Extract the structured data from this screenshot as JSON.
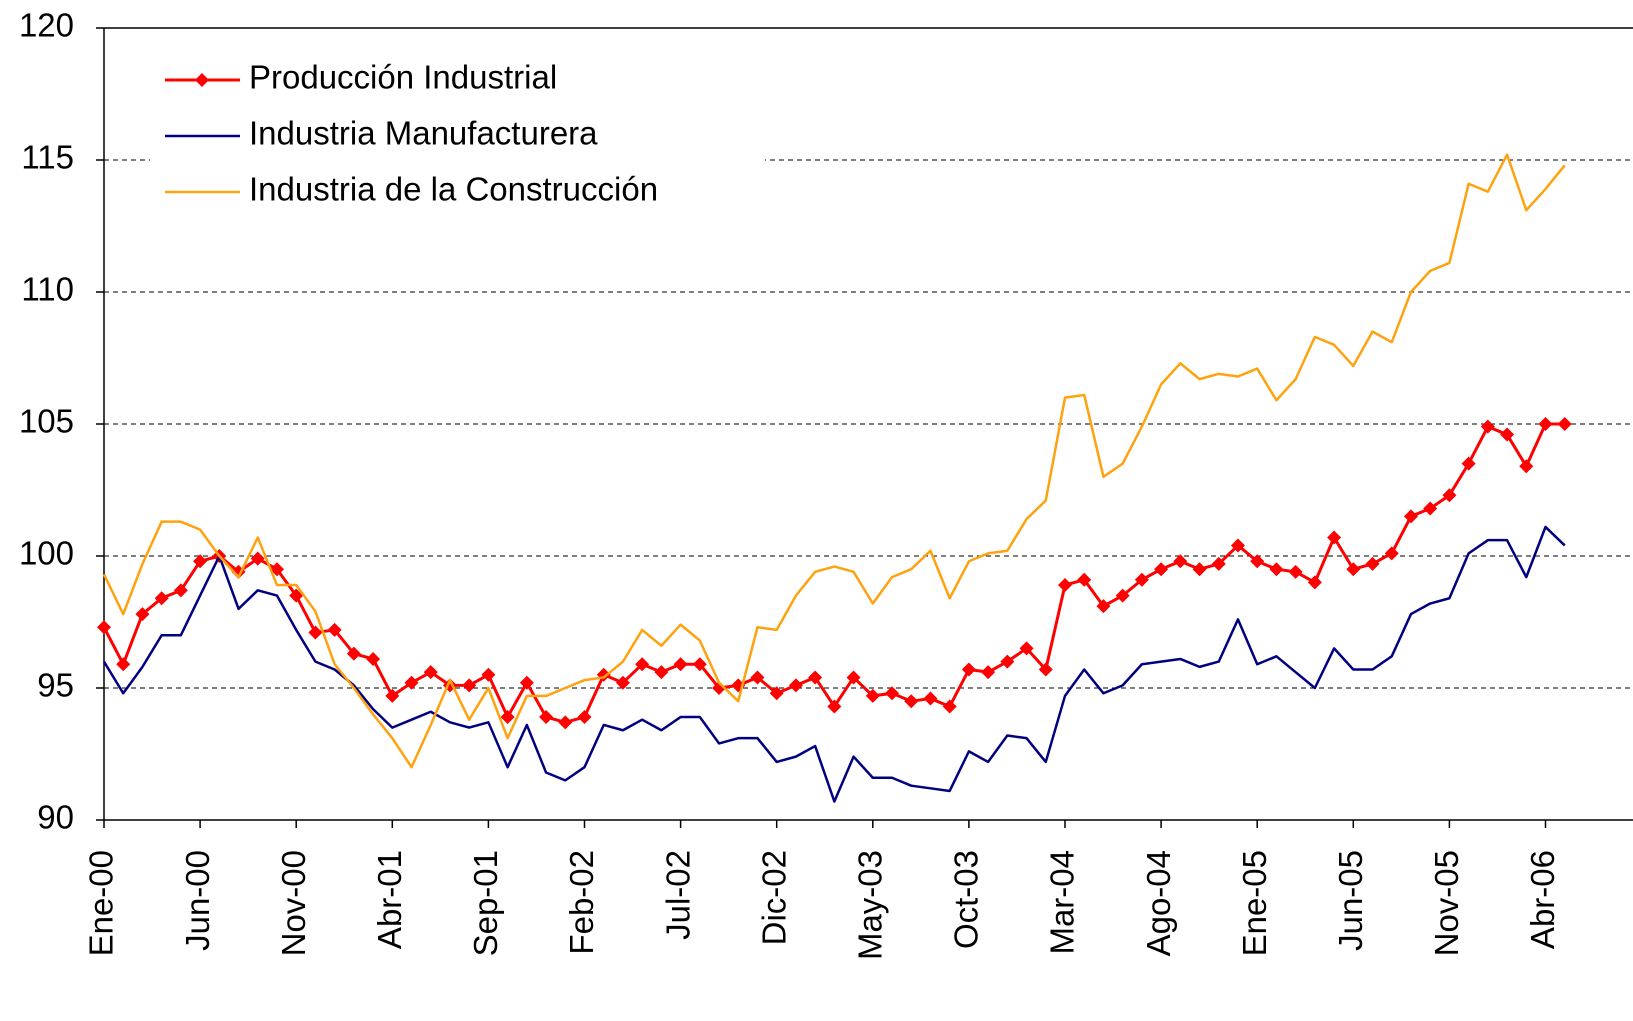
{
  "chart_data": {
    "type": "line",
    "categories": [
      "Ene-00",
      null,
      null,
      null,
      null,
      "Jun-00",
      null,
      null,
      null,
      null,
      "Nov-00",
      null,
      null,
      null,
      null,
      "Abr-01",
      null,
      null,
      null,
      null,
      "Sep-01",
      null,
      null,
      null,
      null,
      "Feb-02",
      null,
      null,
      null,
      null,
      "Jul-02",
      null,
      null,
      null,
      null,
      "Dic-02",
      null,
      null,
      null,
      null,
      "May-03",
      null,
      null,
      null,
      null,
      "Oct-03",
      null,
      null,
      null,
      null,
      "Mar-04",
      null,
      null,
      null,
      null,
      "Ago-04",
      null,
      null,
      null,
      null,
      "Ene-05",
      null,
      null,
      null,
      null,
      "Jun-05",
      null,
      null,
      null,
      null,
      "Nov-05",
      null,
      null,
      null,
      null,
      "Abr-06",
      null
    ],
    "series": [
      {
        "name": "Producción Industrial",
        "color": "#ff0000",
        "marker": "diamond",
        "values": [
          97.3,
          95.9,
          97.8,
          98.4,
          98.7,
          99.8,
          100.0,
          99.4,
          99.9,
          99.5,
          98.5,
          97.1,
          97.2,
          96.3,
          96.1,
          94.7,
          95.2,
          95.6,
          95.1,
          95.1,
          95.5,
          93.9,
          95.2,
          93.9,
          93.7,
          93.9,
          95.5,
          95.2,
          95.9,
          95.6,
          95.9,
          95.9,
          95.0,
          95.1,
          95.4,
          94.8,
          95.1,
          95.4,
          94.3,
          95.4,
          94.7,
          94.8,
          94.5,
          94.6,
          94.3,
          95.7,
          95.6,
          96.0,
          96.5,
          95.7,
          98.9,
          99.1,
          98.1,
          98.5,
          99.1,
          99.5,
          99.8,
          99.5,
          99.7,
          100.4,
          99.8,
          99.5,
          99.4,
          99.0,
          100.7,
          99.5,
          99.7,
          100.1,
          101.5,
          101.8,
          102.3,
          103.5,
          104.9,
          104.6,
          103.4,
          105.0,
          105.0
        ]
      },
      {
        "name": "Industria Manufacturera",
        "color": "#000080",
        "values": [
          96.0,
          94.8,
          95.8,
          97.0,
          97.0,
          98.5,
          100.0,
          98.0,
          98.7,
          98.5,
          97.2,
          96.0,
          95.7,
          95.1,
          94.2,
          93.5,
          93.8,
          94.1,
          93.7,
          93.5,
          93.7,
          92.0,
          93.6,
          91.8,
          91.5,
          92.0,
          93.6,
          93.4,
          93.8,
          93.4,
          93.9,
          93.9,
          92.9,
          93.1,
          93.1,
          92.2,
          92.4,
          92.8,
          90.7,
          92.4,
          91.6,
          91.6,
          91.3,
          91.2,
          91.1,
          92.6,
          92.2,
          93.2,
          93.1,
          92.2,
          94.7,
          95.7,
          94.8,
          95.1,
          95.9,
          96.0,
          96.1,
          95.8,
          96.0,
          97.6,
          95.9,
          96.2,
          95.6,
          95.0,
          96.5,
          95.7,
          95.7,
          96.2,
          97.8,
          98.2,
          98.4,
          100.1,
          100.6,
          100.6,
          99.2,
          101.1,
          100.4
        ]
      },
      {
        "name": "Industria de la Construcción",
        "color": "#ffa20f",
        "values": [
          99.3,
          97.8,
          99.7,
          101.3,
          101.3,
          101.0,
          100.0,
          99.2,
          100.7,
          98.9,
          98.9,
          97.9,
          95.9,
          95.0,
          94.0,
          93.1,
          92.0,
          93.6,
          95.3,
          93.8,
          95.0,
          93.1,
          94.7,
          94.7,
          95.0,
          95.3,
          95.4,
          96.0,
          97.2,
          96.6,
          97.4,
          96.8,
          95.2,
          94.5,
          97.3,
          97.2,
          98.5,
          99.4,
          99.6,
          99.4,
          98.2,
          99.2,
          99.5,
          100.2,
          98.4,
          99.8,
          100.1,
          100.2,
          101.4,
          102.1,
          106.0,
          106.1,
          103.0,
          103.5,
          104.9,
          106.5,
          107.3,
          106.7,
          106.9,
          106.8,
          107.1,
          105.9,
          106.7,
          108.3,
          108.0,
          107.2,
          108.5,
          108.1,
          110.0,
          110.8,
          111.1,
          114.1,
          113.8,
          115.2,
          113.1,
          113.9,
          114.8
        ]
      }
    ],
    "ylim": [
      90,
      120
    ],
    "yticks": [
      90,
      95,
      100,
      105,
      110,
      115,
      120
    ],
    "grid": true,
    "legend": "top-left"
  }
}
